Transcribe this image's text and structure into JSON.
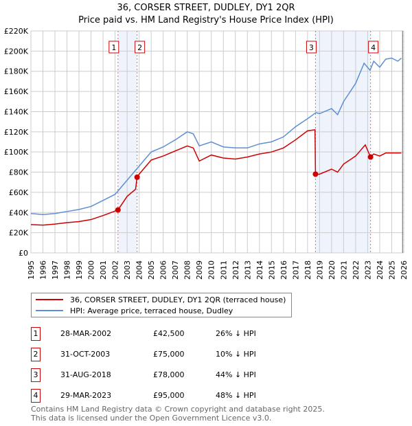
{
  "title": "36, CORSER STREET, DUDLEY, DY1 2QR",
  "subtitle": "Price paid vs. HM Land Registry's House Price Index (HPI)",
  "chart_data": {
    "type": "line",
    "title": "36, CORSER STREET, DUDLEY, DY1 2QR",
    "subtitle": "Price paid vs. HM Land Registry's House Price Index (HPI)",
    "xlim": [
      1995,
      2026
    ],
    "ylim": [
      0,
      220000
    ],
    "x_ticks": [
      "1995",
      "1996",
      "1997",
      "1998",
      "1999",
      "2000",
      "2001",
      "2002",
      "2003",
      "2004",
      "2005",
      "2006",
      "2007",
      "2008",
      "2009",
      "2010",
      "2011",
      "2012",
      "2013",
      "2014",
      "2015",
      "2016",
      "2017",
      "2018",
      "2019",
      "2020",
      "2021",
      "2022",
      "2023",
      "2024",
      "2025",
      "2026"
    ],
    "y_ticks": [
      {
        "v": 0,
        "l": "£0"
      },
      {
        "v": 20000,
        "l": "£20K"
      },
      {
        "v": 40000,
        "l": "£40K"
      },
      {
        "v": 60000,
        "l": "£60K"
      },
      {
        "v": 80000,
        "l": "£80K"
      },
      {
        "v": 100000,
        "l": "£100K"
      },
      {
        "v": 120000,
        "l": "£120K"
      },
      {
        "v": 140000,
        "l": "£140K"
      },
      {
        "v": 160000,
        "l": "£160K"
      },
      {
        "v": 180000,
        "l": "£180K"
      },
      {
        "v": 200000,
        "l": "£200K"
      },
      {
        "v": 220000,
        "l": "£220K"
      }
    ],
    "grid": true,
    "shaded_ranges": [
      [
        2002.24,
        2003.83
      ],
      [
        2018.66,
        2023.24
      ]
    ],
    "future_from": 2025.9,
    "series": [
      {
        "name": "36, CORSER STREET, DUDLEY, DY1 2QR (terraced house)",
        "color": "#cc0000",
        "x": [
          1995,
          1996,
          1997,
          1998,
          1999,
          2000,
          2001,
          2002.24,
          2003,
          2003.7,
          2003.83,
          2004,
          2005,
          2006,
          2007,
          2008,
          2008.5,
          2009,
          2010,
          2011,
          2012,
          2013,
          2014,
          2015,
          2016,
          2017,
          2018,
          2018.62,
          2018.66,
          2019,
          2020,
          2020.5,
          2021,
          2022,
          2022.8,
          2023.24,
          2023.5,
          2024,
          2024.5,
          2025,
          2025.8
        ],
        "y": [
          28000,
          27500,
          28500,
          30000,
          31000,
          33000,
          37000,
          42500,
          56000,
          63000,
          75000,
          78000,
          92000,
          96000,
          101000,
          106000,
          104000,
          91000,
          97000,
          94000,
          93000,
          95000,
          98000,
          100000,
          104000,
          112000,
          121000,
          122000,
          78000,
          78000,
          83000,
          80000,
          88000,
          96000,
          107000,
          95000,
          98000,
          96000,
          99000,
          99000,
          99000
        ]
      },
      {
        "name": "HPI: Average price, terraced house, Dudley",
        "color": "#5b8fd4",
        "x": [
          1995,
          1996,
          1997,
          1998,
          1999,
          2000,
          2001,
          2002,
          2003,
          2004,
          2005,
          2006,
          2007,
          2008,
          2008.5,
          2009,
          2010,
          2011,
          2012,
          2013,
          2014,
          2015,
          2016,
          2017,
          2018,
          2018.7,
          2019,
          2020,
          2020.5,
          2021,
          2022,
          2022.7,
          2023.2,
          2023.5,
          2024,
          2024.5,
          2025,
          2025.5,
          2025.8
        ],
        "y": [
          39000,
          38000,
          39000,
          41000,
          43000,
          46000,
          52000,
          58000,
          72000,
          86000,
          100000,
          105000,
          112000,
          120000,
          118000,
          106000,
          110000,
          105000,
          104000,
          104000,
          108000,
          110000,
          115000,
          125000,
          133000,
          139000,
          138000,
          143000,
          137000,
          150000,
          168000,
          188000,
          181000,
          190000,
          184000,
          192000,
          193000,
          190000,
          193000
        ]
      }
    ],
    "sales": [
      {
        "n": "1",
        "x": 2002.24,
        "y": 42500
      },
      {
        "n": "2",
        "x": 2003.83,
        "y": 75000
      },
      {
        "n": "3",
        "x": 2018.66,
        "y": 78000
      },
      {
        "n": "4",
        "x": 2023.24,
        "y": 95000
      }
    ]
  },
  "legend": {
    "red": "36, CORSER STREET, DUDLEY, DY1 2QR (terraced house)",
    "blue": "HPI: Average price, terraced house, Dudley"
  },
  "table": [
    {
      "n": "1",
      "date": "28-MAR-2002",
      "price": "£42,500",
      "hpi": "26% ↓ HPI"
    },
    {
      "n": "2",
      "date": "31-OCT-2003",
      "price": "£75,000",
      "hpi": "10% ↓ HPI"
    },
    {
      "n": "3",
      "date": "31-AUG-2018",
      "price": "£78,000",
      "hpi": "44% ↓ HPI"
    },
    {
      "n": "4",
      "date": "29-MAR-2023",
      "price": "£95,000",
      "hpi": "48% ↓ HPI"
    }
  ],
  "footer": {
    "line1": "Contains HM Land Registry data © Crown copyright and database right 2025.",
    "line2": "This data is licensed under the Open Government Licence v3.0."
  }
}
